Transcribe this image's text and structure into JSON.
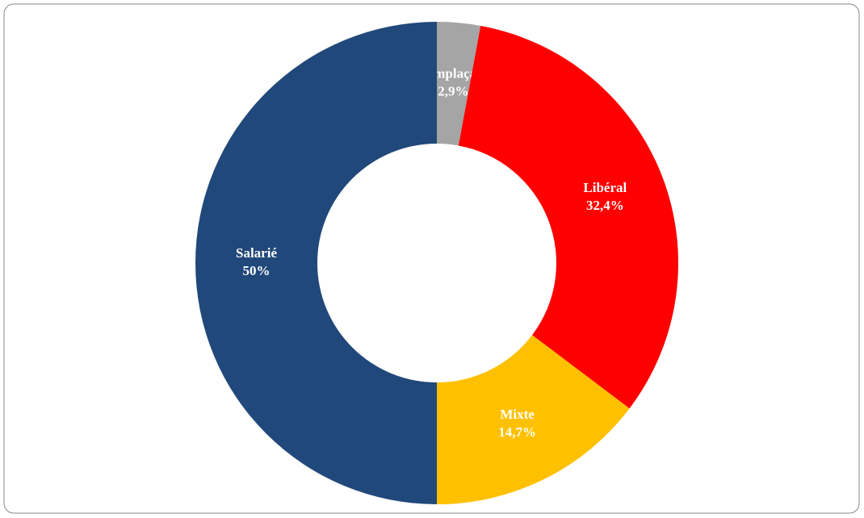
{
  "chart_data": {
    "type": "donut",
    "categories": [
      "Remplaçant",
      "Libéral",
      "Mixte",
      "Salarié"
    ],
    "values": [
      2.9,
      32.4,
      14.7,
      50
    ],
    "value_labels": [
      "2,9%",
      "32,4%",
      "14,7%",
      "50%"
    ],
    "colors": [
      "#a5a5a5",
      "#ff0000",
      "#ffc000",
      "#21487a"
    ]
  }
}
